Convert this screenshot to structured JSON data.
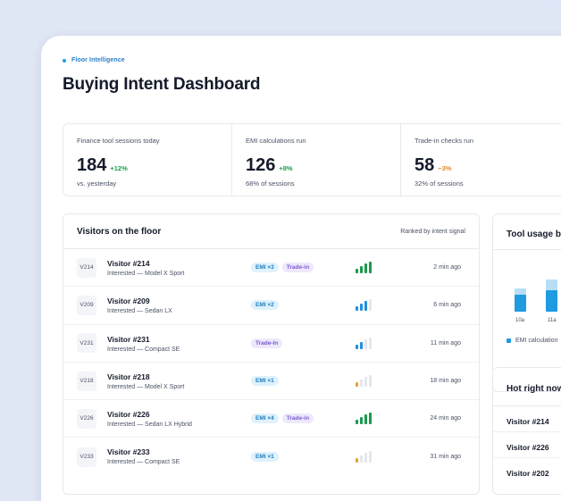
{
  "header": {
    "eyebrow": "Floor Intelligence",
    "title": "Buying Intent Dashboard"
  },
  "stats": [
    {
      "label": "Finance tool sessions today",
      "value": "184",
      "delta": "+12%",
      "trend": "up",
      "sub": "vs. yesterday"
    },
    {
      "label": "EMI calculations run",
      "value": "126",
      "delta": "+8%",
      "trend": "up",
      "sub": "68% of sessions"
    },
    {
      "label": "Trade-in checks run",
      "value": "58",
      "delta": "−3%",
      "trend": "down",
      "sub": "32% of sessions"
    }
  ],
  "visitors": {
    "title": "Visitors on the floor",
    "ranked_label": "Ranked by intent signal",
    "rows": [
      {
        "code": "V214",
        "name": "Visitor #214",
        "interest": "Interested — Model X Sport",
        "tags": [
          "EMI ×3",
          "Trade-in"
        ],
        "signal": 4,
        "signal_color": "#1c9a4e",
        "time": "2 min ago"
      },
      {
        "code": "V209",
        "name": "Visitor #209",
        "interest": "Interested — Sedan LX",
        "tags": [
          "EMI ×2"
        ],
        "signal": 3,
        "signal_color": "#1f8fe0",
        "time": "6 min ago"
      },
      {
        "code": "V231",
        "name": "Visitor #231",
        "interest": "Interested — Compact SE",
        "tags": [
          "Trade-in"
        ],
        "signal": 2,
        "signal_color": "#1f8fe0",
        "time": "11 min ago"
      },
      {
        "code": "V218",
        "name": "Visitor #218",
        "interest": "Interested — Model X Sport",
        "tags": [
          "EMI ×1"
        ],
        "signal": 1,
        "signal_color": "#e8a23a",
        "time": "18 min ago"
      },
      {
        "code": "V226",
        "name": "Visitor #226",
        "interest": "Interested — Sedan LX Hybrid",
        "tags": [
          "EMI ×4",
          "Trade-in"
        ],
        "signal": 4,
        "signal_color": "#1c9a4e",
        "time": "24 min ago"
      },
      {
        "code": "V233",
        "name": "Visitor #233",
        "interest": "Interested — Compact SE",
        "tags": [
          "EMI ×1"
        ],
        "signal": 1,
        "signal_color": "#e8a23a",
        "time": "31 min ago"
      }
    ]
  },
  "tool_usage": {
    "title": "Tool usage by",
    "legend": "EMI calculation",
    "categories": [
      "10a",
      "11a"
    ]
  },
  "hot": {
    "title": "Hot right now",
    "items": [
      "Visitor #214",
      "Visitor #226",
      "Visitor #202"
    ]
  },
  "colors": {
    "accent": "#1f9be0",
    "up": "#1c9a4e",
    "down": "#e0882a",
    "emi_tag": "#1e7fc0",
    "trade_tag": "#7a58d6"
  }
}
